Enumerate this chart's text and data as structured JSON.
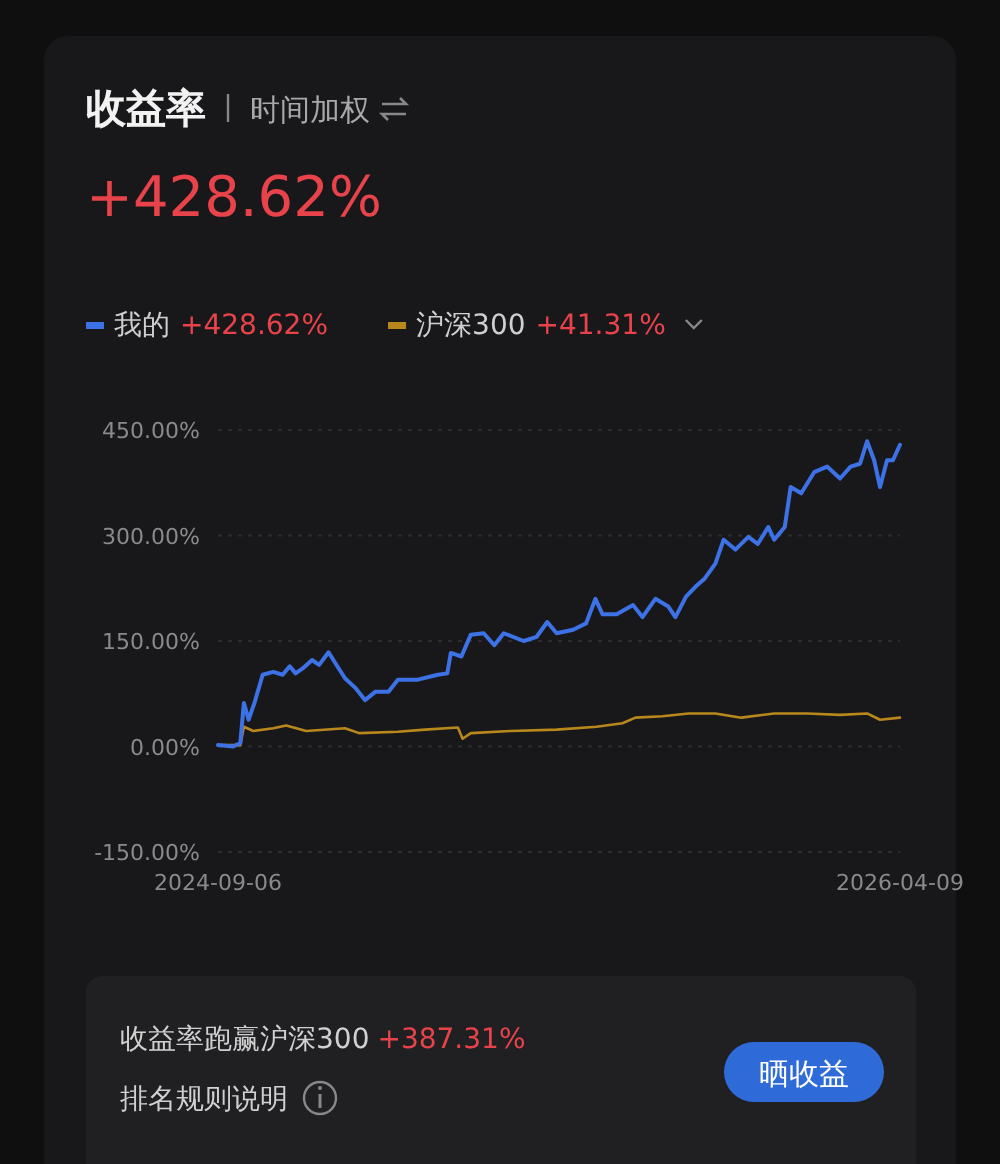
{
  "chart_data": {
    "type": "line",
    "title": "收益率",
    "subtitle": "时间加权",
    "annotations": [
      "+428.62%",
      "+428.62%",
      "+41.31%",
      "收益率跑赢沪深300",
      "+387.31%",
      "排名规则说明",
      "晒收益"
    ],
    "xlim": [
      "2024-09-06",
      "2026-04-09"
    ],
    "xticks": [
      "2024-09-06",
      "2026-04-09"
    ],
    "ylim": [
      -150,
      450
    ],
    "yticks": [
      {
        "value": -150,
        "label": "-150.00%"
      },
      {
        "value": 0,
        "label": "0.00%"
      },
      {
        "value": 150,
        "label": "150.00%"
      },
      {
        "value": 300,
        "label": "300.00%"
      },
      {
        "value": 450,
        "label": "450.00%"
      }
    ],
    "grid": "y",
    "legend": "top left",
    "line_style": "solid",
    "marker": "none",
    "series": [
      {
        "name": "我的",
        "color": "#3d72e6",
        "x": [
          "2024-09-06",
          "2024-09-19",
          "2024-09-25",
          "2024-09-28",
          "2024-10-02",
          "2024-10-07",
          "2024-10-14",
          "2024-10-23",
          "2024-10-31",
          "2024-11-06",
          "2024-11-11",
          "2024-11-17",
          "2024-11-25",
          "2024-12-01",
          "2024-12-09",
          "2024-12-15",
          "2024-12-23",
          "2025-01-01",
          "2025-01-09",
          "2025-01-18",
          "2025-01-29",
          "2025-02-06",
          "2025-02-23",
          "2025-03-12",
          "2025-03-20",
          "2025-03-23",
          "2025-04-01",
          "2025-04-09",
          "2025-04-20",
          "2025-04-29",
          "2025-05-07",
          "2025-05-24",
          "2025-06-04",
          "2025-06-13",
          "2025-06-21",
          "2025-07-05",
          "2025-07-16",
          "2025-07-24",
          "2025-07-30",
          "2025-08-11",
          "2025-08-25",
          "2025-09-02",
          "2025-09-13",
          "2025-09-24",
          "2025-09-30",
          "2025-10-09",
          "2025-10-17",
          "2025-10-25",
          "2025-11-03",
          "2025-11-10",
          "2025-11-20",
          "2025-12-01",
          "2025-12-09",
          "2025-12-18",
          "2025-12-23",
          "2026-01-01",
          "2026-01-06",
          "2026-01-15",
          "2026-01-26",
          "2026-02-06",
          "2026-02-17",
          "2026-02-26",
          "2026-03-06",
          "2026-03-12",
          "2026-03-18",
          "2026-03-23",
          "2026-03-29",
          "2026-04-03",
          "2026-04-09"
        ],
        "values": [
          2,
          0,
          5,
          62,
          38,
          62,
          102,
          106,
          102,
          114,
          104,
          111,
          123,
          116,
          134,
          118,
          97,
          83,
          66,
          78,
          78,
          95,
          95,
          102,
          104,
          133,
          128,
          159,
          161,
          144,
          161,
          150,
          156,
          177,
          161,
          166,
          175,
          210,
          188,
          188,
          201,
          184,
          210,
          199,
          184,
          213,
          227,
          239,
          260,
          294,
          280,
          298,
          288,
          312,
          294,
          312,
          369,
          360,
          390,
          398,
          381,
          398,
          402,
          434,
          407,
          369,
          407,
          407,
          429
        ]
      },
      {
        "name": "沪深300",
        "color": "#b8881c",
        "x": [
          "2024-09-06",
          "2024-09-25",
          "2024-09-28",
          "2024-10-06",
          "2024-10-23",
          "2024-11-03",
          "2024-11-20",
          "2024-12-23",
          "2025-01-04",
          "2025-02-06",
          "2025-03-01",
          "2025-03-29",
          "2025-04-02",
          "2025-04-09",
          "2025-05-13",
          "2025-06-21",
          "2025-07-25",
          "2025-08-16",
          "2025-08-27",
          "2025-09-19",
          "2025-10-11",
          "2025-11-03",
          "2025-11-25",
          "2025-12-23",
          "2026-01-20",
          "2026-02-17",
          "2026-03-12",
          "2026-03-23",
          "2026-04-09"
        ],
        "values": [
          2,
          2,
          28,
          22,
          26,
          30,
          22,
          26,
          19,
          21,
          24,
          27,
          11,
          19,
          22,
          24,
          28,
          33,
          41,
          43,
          47,
          47,
          41,
          47,
          47,
          45,
          47,
          38,
          41
        ]
      }
    ]
  }
}
